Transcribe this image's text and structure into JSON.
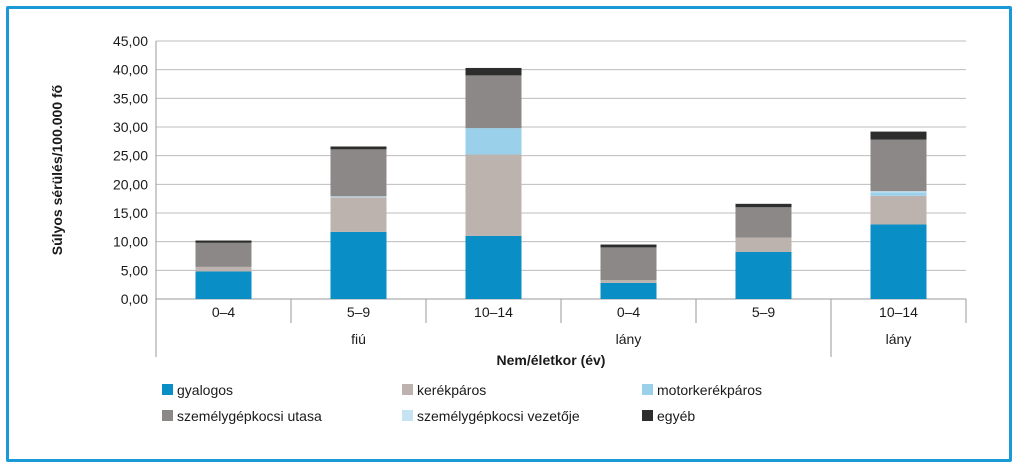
{
  "chart_data": {
    "type": "bar",
    "stacked": true,
    "ylabel": "Súlyos sérülés/100.000 fő",
    "xlabel": "Nem/életkor (év)",
    "ylim": [
      0,
      45
    ],
    "yticks": [
      "0,00",
      "5,00",
      "10,00",
      "15,00",
      "20,00",
      "25,00",
      "30,00",
      "35,00",
      "40,00",
      "45,00"
    ],
    "categories": [
      "0–4",
      "5–9",
      "10–14",
      "0–4",
      "5–9",
      "10–14"
    ],
    "group_labels": [
      "fiú",
      "lány",
      "lány"
    ],
    "grid": true,
    "legend_position": "bottom",
    "series": [
      {
        "name": "gyalogos",
        "color": "#0a8ec6",
        "values": [
          4.8,
          11.7,
          11.0,
          2.8,
          8.2,
          13.0
        ]
      },
      {
        "name": "személygépkocsi utasa",
        "color": "#8c8887",
        "values": [
          4.2,
          8.2,
          9.2,
          5.7,
          5.3,
          9.0
        ]
      },
      {
        "name": "kerékpáros",
        "color": "#bdb3ae",
        "values": [
          0.8,
          6.0,
          14.2,
          0.5,
          2.5,
          5.0
        ]
      },
      {
        "name": "személygépkocsi vezetője",
        "color": "#c6e3f3",
        "values": [
          0.0,
          0.2,
          0.0,
          0.0,
          0.0,
          0.2
        ]
      },
      {
        "name": "motorkerékpáros",
        "color": "#9ad0ea",
        "values": [
          0.0,
          0.0,
          4.6,
          0.0,
          0.0,
          0.6
        ]
      },
      {
        "name": "egyéb",
        "color": "#2d2d2d",
        "values": [
          0.4,
          0.5,
          1.3,
          0.5,
          0.6,
          1.4
        ]
      }
    ],
    "stack_order": [
      0,
      2,
      4,
      3,
      1,
      5
    ],
    "legend_order": [
      0,
      2,
      4,
      1,
      3,
      5
    ]
  }
}
